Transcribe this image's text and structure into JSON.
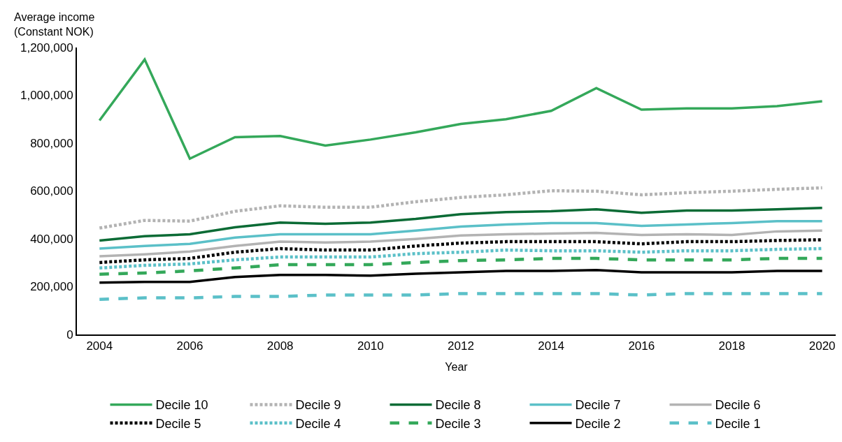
{
  "chart_data": {
    "type": "line",
    "xlabel": "Year",
    "ylabel": "Average income\n(Constant NOK)",
    "x": [
      2004,
      2005,
      2006,
      2007,
      2008,
      2009,
      2010,
      2011,
      2012,
      2013,
      2014,
      2015,
      2016,
      2017,
      2018,
      2019,
      2020
    ],
    "xlim": [
      2003.5,
      2020.3
    ],
    "xticks": [
      2004,
      2006,
      2008,
      2010,
      2012,
      2014,
      2016,
      2018,
      2020
    ],
    "ylim": [
      0,
      1200000
    ],
    "yticks": [
      {
        "value": 0,
        "label": "0"
      },
      {
        "value": 200000,
        "label": "200,000"
      },
      {
        "value": 400000,
        "label": "400,000"
      },
      {
        "value": 600000,
        "label": "600,000"
      },
      {
        "value": 800000,
        "label": "800,000"
      },
      {
        "value": 1000000,
        "label": "1,000,000"
      },
      {
        "value": 1200000,
        "label": "1,200,000"
      }
    ],
    "legend": "bottom",
    "marker": "none",
    "series": [
      {
        "name": "Decile 10",
        "color": "#34a85a",
        "line_style": "solid",
        "values": [
          895000,
          1150000,
          735000,
          825000,
          830000,
          790000,
          815000,
          845000,
          880000,
          900000,
          935000,
          1030000,
          940000,
          945000,
          945000,
          955000,
          975000
        ]
      },
      {
        "name": "Decile 9",
        "color": "#b3b3b3",
        "line_style": "dotted",
        "values": [
          445000,
          477000,
          474000,
          515000,
          538000,
          532000,
          532000,
          555000,
          573000,
          584000,
          601000,
          599000,
          584000,
          593000,
          599000,
          607000,
          613000
        ]
      },
      {
        "name": "Decile 8",
        "color": "#0b6b35",
        "line_style": "solid",
        "values": [
          393000,
          411000,
          419000,
          448000,
          468000,
          463000,
          468000,
          483000,
          503000,
          512000,
          515000,
          523000,
          509000,
          518000,
          518000,
          523000,
          529000
        ]
      },
      {
        "name": "Decile 7",
        "color": "#5bc0c8",
        "line_style": "solid",
        "values": [
          359000,
          370000,
          379000,
          405000,
          419000,
          419000,
          419000,
          434000,
          451000,
          460000,
          466000,
          466000,
          454000,
          460000,
          466000,
          474000,
          474000
        ]
      },
      {
        "name": "Decile 6",
        "color": "#b3b3b3",
        "line_style": "solid",
        "values": [
          327000,
          335000,
          347000,
          370000,
          388000,
          385000,
          388000,
          399000,
          414000,
          419000,
          422000,
          425000,
          416000,
          419000,
          416000,
          431000,
          434000
        ]
      },
      {
        "name": "Decile 5",
        "color": "#000000",
        "line_style": "dotted",
        "values": [
          301000,
          312000,
          318000,
          344000,
          359000,
          353000,
          353000,
          370000,
          382000,
          388000,
          388000,
          388000,
          379000,
          388000,
          388000,
          393000,
          396000
        ]
      },
      {
        "name": "Decile 4",
        "color": "#5bc0c8",
        "line_style": "dotted",
        "values": [
          278000,
          289000,
          295000,
          312000,
          324000,
          324000,
          324000,
          338000,
          344000,
          353000,
          350000,
          350000,
          344000,
          350000,
          350000,
          356000,
          359000
        ]
      },
      {
        "name": "Decile 3",
        "color": "#34a85a",
        "line_style": "dashed",
        "values": [
          252000,
          257000,
          266000,
          278000,
          292000,
          292000,
          292000,
          301000,
          309000,
          312000,
          318000,
          318000,
          312000,
          312000,
          312000,
          318000,
          318000
        ]
      },
      {
        "name": "Decile 2",
        "color": "#000000",
        "line_style": "solid",
        "values": [
          217000,
          220000,
          220000,
          240000,
          249000,
          249000,
          246000,
          254000,
          260000,
          266000,
          266000,
          269000,
          260000,
          260000,
          260000,
          266000,
          266000
        ]
      },
      {
        "name": "Decile 1",
        "color": "#5bc0c8",
        "line_style": "dashed",
        "values": [
          147000,
          153000,
          153000,
          159000,
          159000,
          165000,
          165000,
          165000,
          171000,
          171000,
          171000,
          171000,
          165000,
          171000,
          171000,
          171000,
          171000
        ]
      }
    ]
  }
}
